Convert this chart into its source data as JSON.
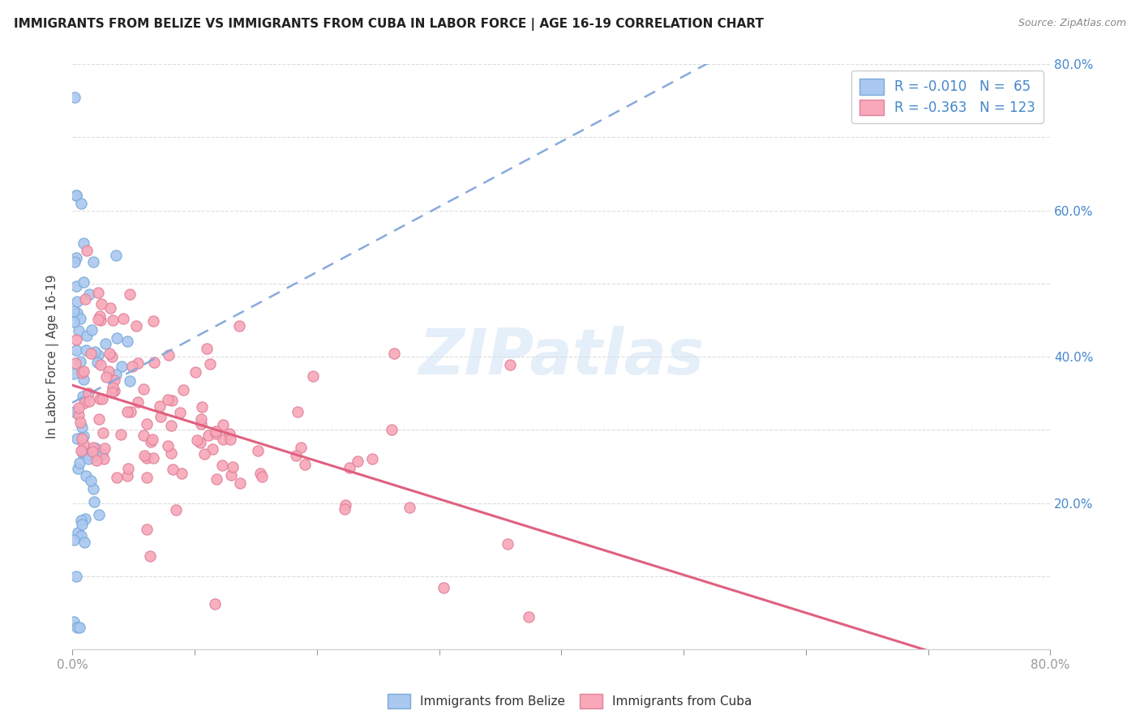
{
  "title": "IMMIGRANTS FROM BELIZE VS IMMIGRANTS FROM CUBA IN LABOR FORCE | AGE 16-19 CORRELATION CHART",
  "source": "Source: ZipAtlas.com",
  "ylabel": "In Labor Force | Age 16-19",
  "xlim": [
    0.0,
    0.8
  ],
  "ylim": [
    0.0,
    0.8
  ],
  "belize_color": "#aac8f0",
  "cuba_color": "#f8a8b8",
  "belize_edge": "#7aaad8",
  "cuba_edge": "#e0809a",
  "trendline_belize_color": "#88aadd",
  "trendline_cuba_color": "#e06080",
  "legend_belize_label": "R = -0.010   N =  65",
  "legend_cuba_label": "R = -0.363   N = 123",
  "bottom_legend_belize": "Immigrants from Belize",
  "bottom_legend_cuba": "Immigrants from Cuba",
  "r_belize": -0.01,
  "n_belize": 65,
  "r_cuba": -0.363,
  "n_cuba": 123,
  "watermark": "ZIPatlas",
  "background_color": "#ffffff",
  "ytick_right_vals": [
    0.2,
    0.4,
    0.6,
    0.8
  ],
  "ytick_right_labels": [
    "20.0%",
    "40.0%",
    "60.0%",
    "80.0%"
  ],
  "grid_color": "#dddddd",
  "tick_color": "#999999",
  "label_color": "#4488cc",
  "title_color": "#222222",
  "source_color": "#888888"
}
